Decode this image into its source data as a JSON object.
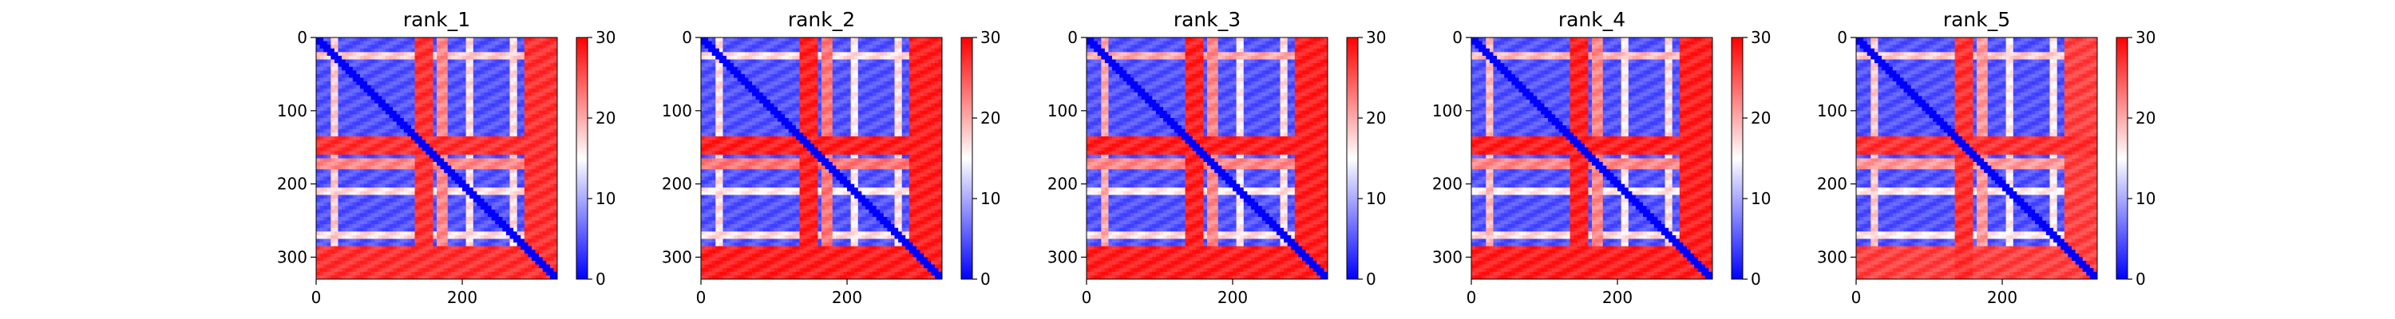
{
  "chart_data": [
    {
      "type": "heatmap",
      "title": "rank_1",
      "n": 330,
      "xlim": [
        0,
        330
      ],
      "ylim": [
        330,
        0
      ],
      "xticks": [
        0,
        200
      ],
      "yticks": [
        0,
        100,
        200,
        300
      ],
      "colorbar": {
        "range": [
          0,
          30
        ],
        "ticks": [
          0,
          10,
          20,
          30
        ],
        "colormap": "bwr",
        "colors": [
          "#0000ff",
          "#ffffff",
          "#ff0000"
        ]
      },
      "bands": [
        [
          22,
          30
        ],
        [
          135,
          160
        ],
        [
          165,
          180
        ],
        [
          205,
          215
        ],
        [
          265,
          275
        ],
        [
          285,
          330
        ]
      ],
      "band_levels": [
        18,
        27,
        22,
        17,
        17,
        27
      ],
      "background": 5,
      "diagonal": 0
    },
    {
      "type": "heatmap",
      "title": "rank_2",
      "n": 330,
      "xlim": [
        0,
        330
      ],
      "ylim": [
        330,
        0
      ],
      "xticks": [
        0,
        200
      ],
      "yticks": [
        0,
        100,
        200,
        300
      ],
      "colorbar": {
        "range": [
          0,
          30
        ],
        "ticks": [
          0,
          10,
          20,
          30
        ],
        "colormap": "bwr",
        "colors": [
          "#0000ff",
          "#ffffff",
          "#ff0000"
        ]
      },
      "bands": [
        [
          22,
          30
        ],
        [
          135,
          160
        ],
        [
          165,
          180
        ],
        [
          205,
          215
        ],
        [
          265,
          275
        ],
        [
          285,
          330
        ]
      ],
      "band_levels": [
        17,
        28,
        23,
        16,
        17,
        28
      ],
      "background": 5,
      "diagonal": 0
    },
    {
      "type": "heatmap",
      "title": "rank_3",
      "n": 330,
      "xlim": [
        0,
        330
      ],
      "ylim": [
        330,
        0
      ],
      "xticks": [
        0,
        200
      ],
      "yticks": [
        0,
        100,
        200,
        300
      ],
      "colorbar": {
        "range": [
          0,
          30
        ],
        "ticks": [
          0,
          10,
          20,
          30
        ],
        "colormap": "bwr",
        "colors": [
          "#0000ff",
          "#ffffff",
          "#ff0000"
        ]
      },
      "bands": [
        [
          22,
          30
        ],
        [
          135,
          160
        ],
        [
          165,
          180
        ],
        [
          205,
          215
        ],
        [
          265,
          275
        ],
        [
          285,
          330
        ]
      ],
      "band_levels": [
        20,
        28,
        22,
        16,
        17,
        28
      ],
      "background": 5,
      "diagonal": 0
    },
    {
      "type": "heatmap",
      "title": "rank_4",
      "n": 330,
      "xlim": [
        0,
        330
      ],
      "ylim": [
        330,
        0
      ],
      "xticks": [
        0,
        200
      ],
      "yticks": [
        0,
        100,
        200,
        300
      ],
      "colorbar": {
        "range": [
          0,
          30
        ],
        "ticks": [
          0,
          10,
          20,
          30
        ],
        "colormap": "bwr",
        "colors": [
          "#0000ff",
          "#ffffff",
          "#ff0000"
        ]
      },
      "bands": [
        [
          22,
          30
        ],
        [
          135,
          160
        ],
        [
          165,
          180
        ],
        [
          205,
          215
        ],
        [
          265,
          275
        ],
        [
          285,
          330
        ]
      ],
      "band_levels": [
        19,
        28,
        22,
        16,
        17,
        28
      ],
      "background": 5,
      "diagonal": 0
    },
    {
      "type": "heatmap",
      "title": "rank_5",
      "n": 330,
      "xlim": [
        0,
        330
      ],
      "ylim": [
        330,
        0
      ],
      "xticks": [
        0,
        200
      ],
      "yticks": [
        0,
        100,
        200,
        300
      ],
      "colorbar": {
        "range": [
          0,
          30
        ],
        "ticks": [
          0,
          10,
          20,
          30
        ],
        "colormap": "bwr",
        "colors": [
          "#0000ff",
          "#ffffff",
          "#ff0000"
        ]
      },
      "bands": [
        [
          22,
          30
        ],
        [
          135,
          160
        ],
        [
          165,
          180
        ],
        [
          205,
          215
        ],
        [
          265,
          275
        ],
        [
          285,
          330
        ]
      ],
      "band_levels": [
        18,
        27,
        21,
        16,
        16,
        26
      ],
      "background": 5,
      "diagonal": 0
    }
  ]
}
